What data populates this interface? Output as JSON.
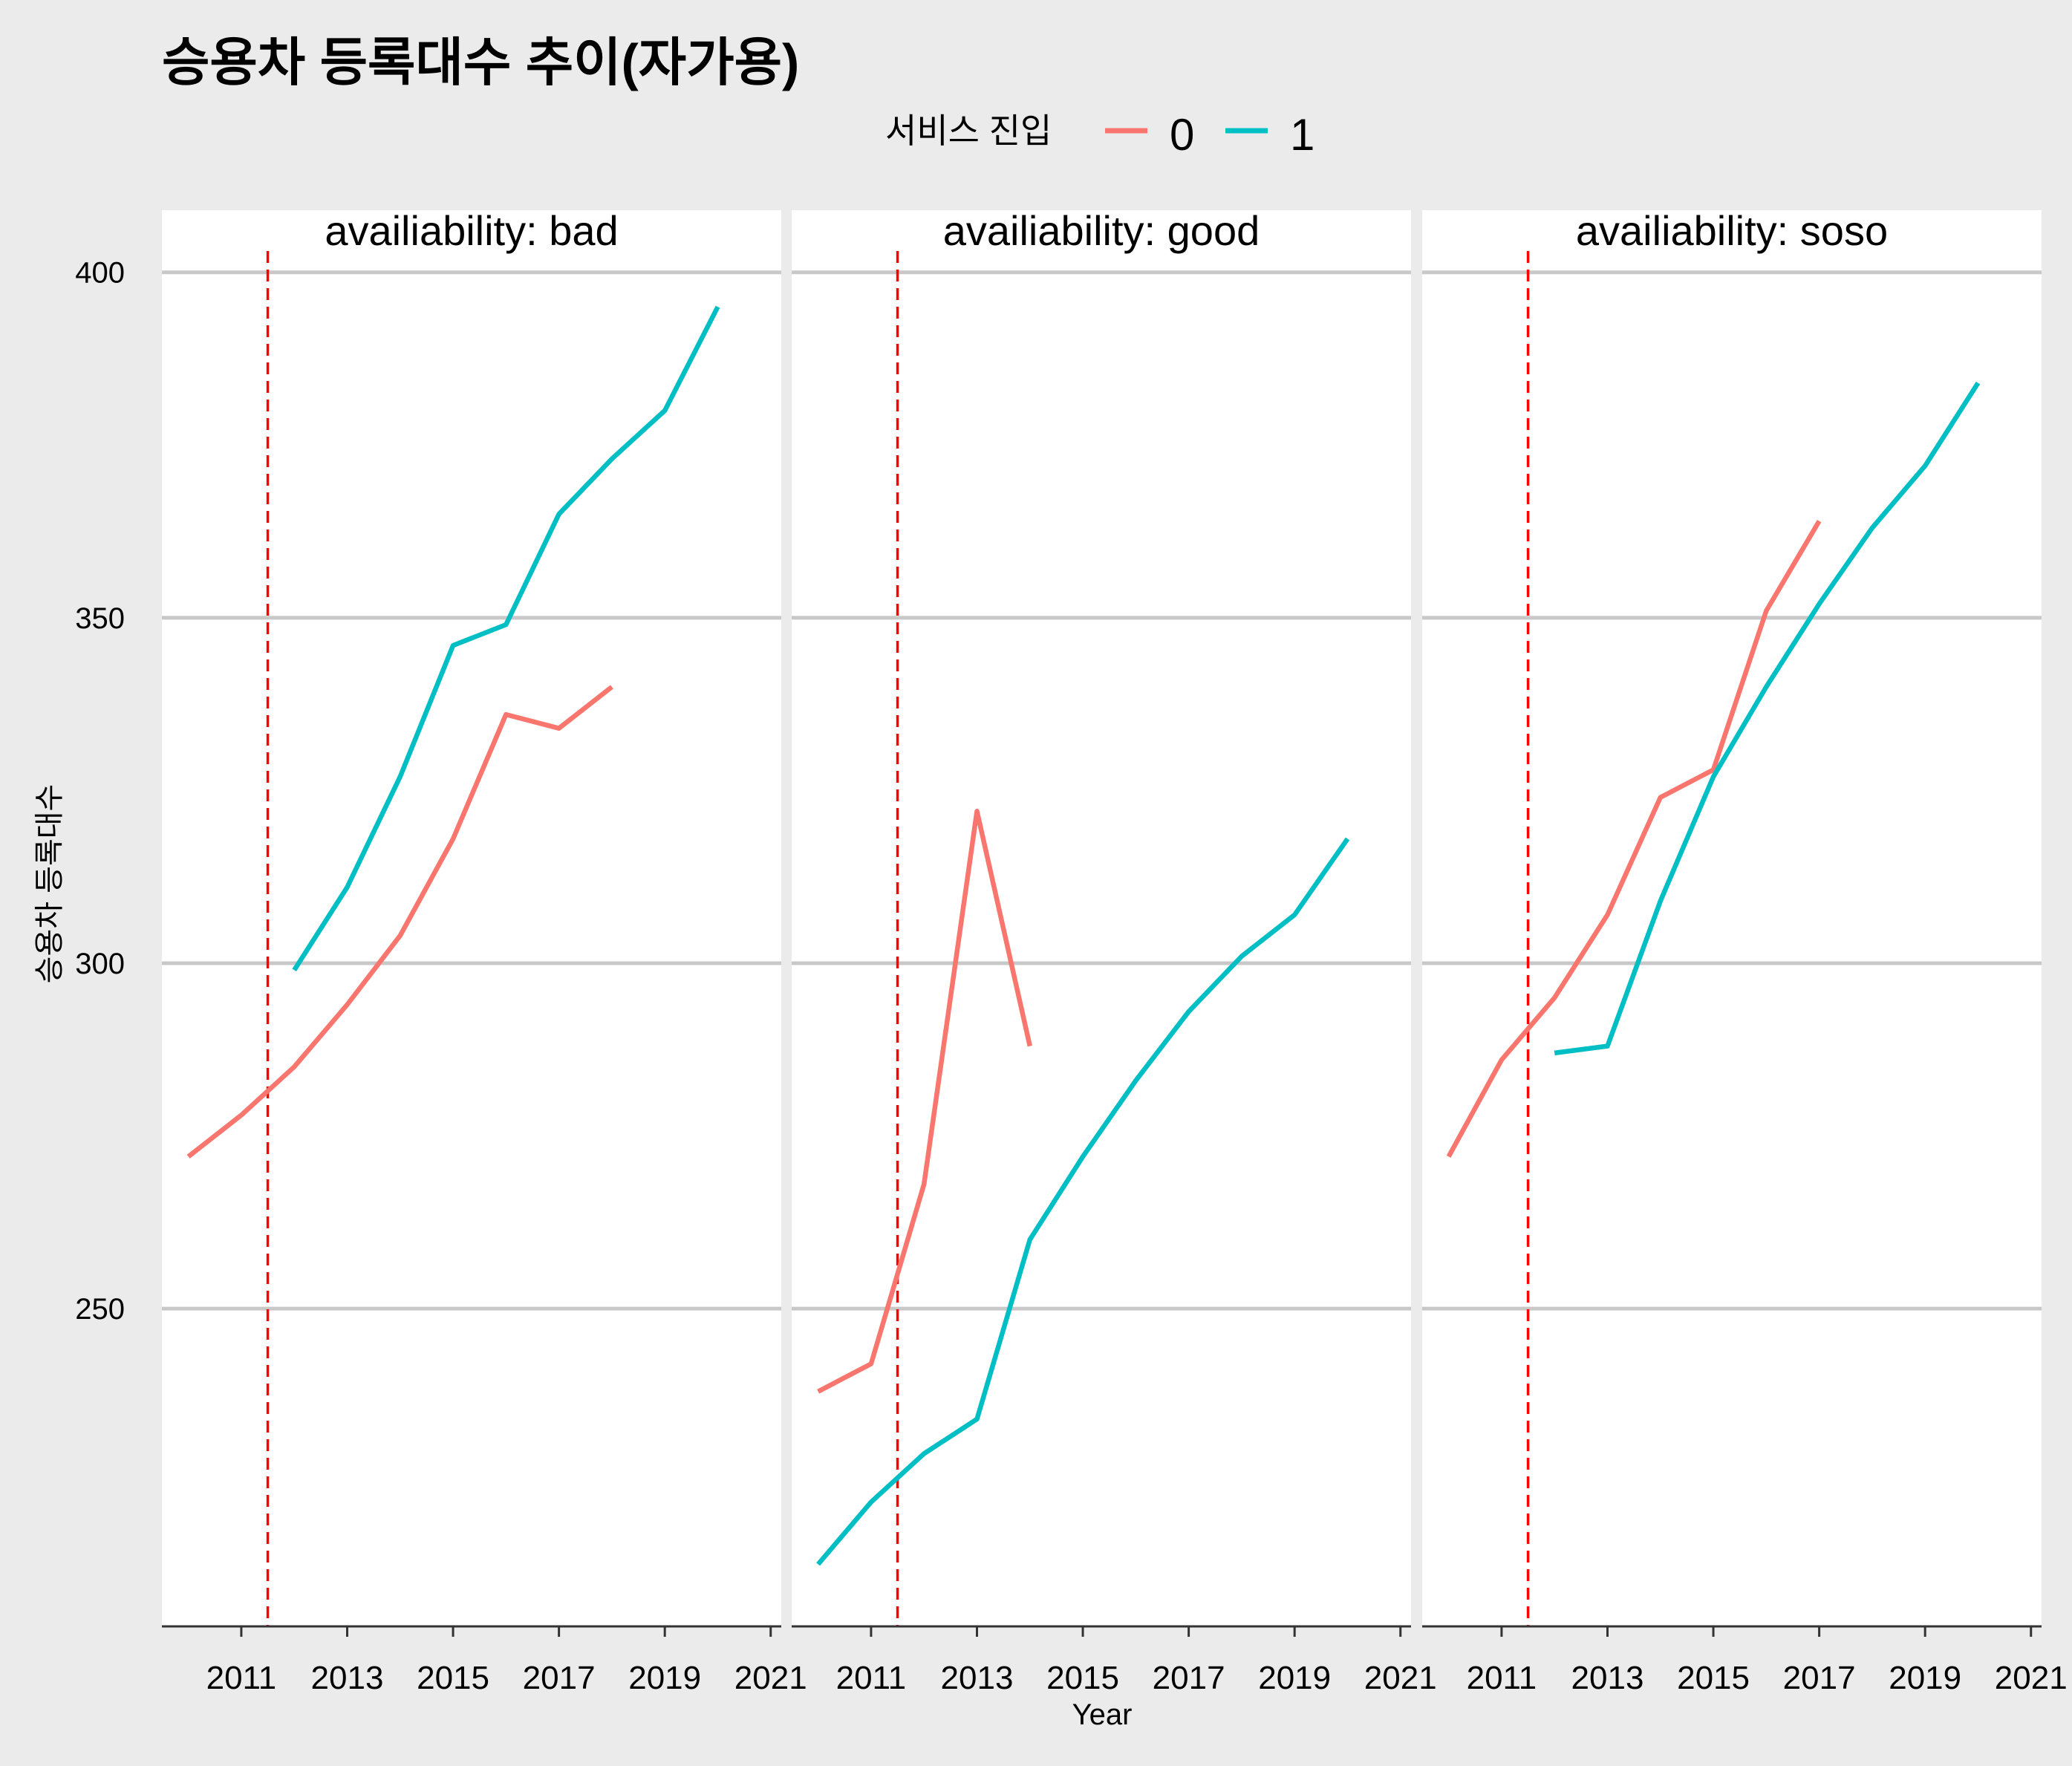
{
  "chart_data": {
    "type": "line",
    "title": "승용차 등록대수 추이(자가용)",
    "xlabel": "Year",
    "ylabel": "승용차 등록대수",
    "xlim": [
      2009.5,
      2021.2
    ],
    "ylim": [
      204,
      409
    ],
    "x_ticks": [
      2011,
      2013,
      2015,
      2017,
      2019,
      2021
    ],
    "y_ticks": [
      250,
      300,
      350,
      400
    ],
    "grid": "horizontal major",
    "legend": {
      "title": "서비스 진입",
      "position": "top",
      "entries": [
        {
          "label": "0",
          "color": "#F8766D"
        },
        {
          "label": "1",
          "color": "#00BFC4"
        }
      ]
    },
    "reference_line": {
      "x": 2011.5,
      "color": "#FF0000",
      "style": "dashed"
    },
    "facets": [
      {
        "label": "availiability: bad",
        "series": [
          {
            "name": "0",
            "color": "#F8766D",
            "x": [
              2010,
              2011,
              2012,
              2013,
              2014,
              2015,
              2016,
              2017,
              2018
            ],
            "y": [
              272,
              278,
              285,
              294,
              304,
              318,
              336,
              334,
              340
            ]
          },
          {
            "name": "1",
            "color": "#00BFC4",
            "x": [
              2012,
              2013,
              2014,
              2015,
              2016,
              2017,
              2018,
              2019,
              2020
            ],
            "y": [
              299,
              311,
              327,
              346,
              349,
              365,
              373,
              380,
              395
            ]
          }
        ]
      },
      {
        "label": "availiability: good",
        "series": [
          {
            "name": "0",
            "color": "#F8766D",
            "x": [
              2010,
              2011,
              2012,
              2013,
              2014
            ],
            "y": [
              238,
              242,
              268,
              322,
              288
            ]
          },
          {
            "name": "1",
            "color": "#00BFC4",
            "x": [
              2010,
              2011,
              2012,
              2013,
              2014,
              2015,
              2016,
              2017,
              2018,
              2019,
              2020
            ],
            "y": [
              213,
              222,
              229,
              234,
              260,
              272,
              283,
              293,
              301,
              307,
              318
            ]
          }
        ]
      },
      {
        "label": "availiability: soso",
        "series": [
          {
            "name": "0",
            "color": "#F8766D",
            "x": [
              2010,
              2011,
              2012,
              2013,
              2014,
              2015,
              2016,
              2017
            ],
            "y": [
              272,
              286,
              295,
              307,
              324,
              328,
              351,
              364
            ]
          },
          {
            "name": "1",
            "color": "#00BFC4",
            "x": [
              2012,
              2013,
              2014,
              2015,
              2016,
              2017,
              2018,
              2019,
              2020
            ],
            "y": [
              287,
              288,
              309,
              327,
              340,
              352,
              363,
              372,
              384
            ]
          }
        ]
      }
    ]
  }
}
